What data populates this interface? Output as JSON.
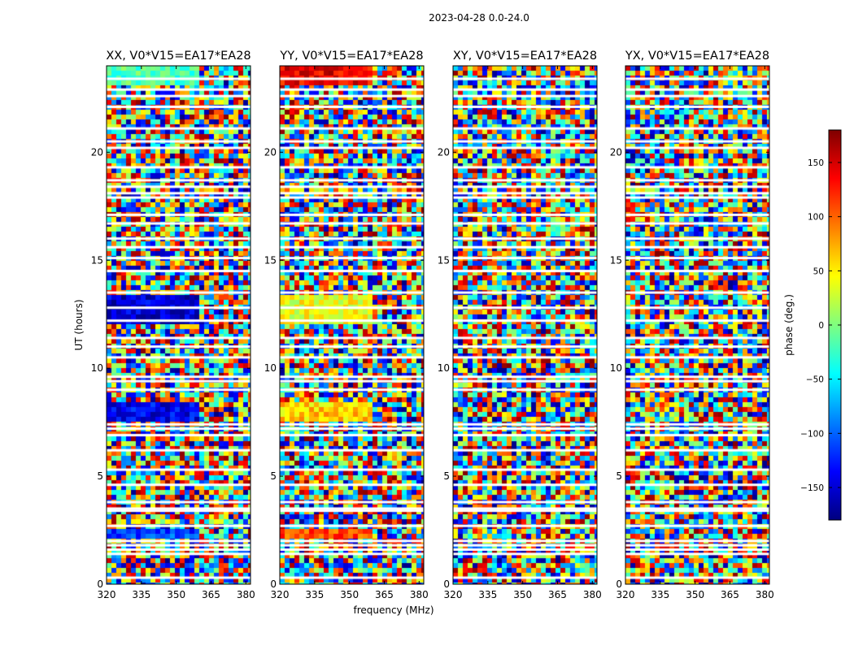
{
  "figure": {
    "suptitle": "2023-04-28 0.0-24.0",
    "xlabel": "frequency (MHz)",
    "ylabel": "UT (hours)"
  },
  "chart_data": {
    "type": "heatmap",
    "title": "2023-04-28 0.0-24.0",
    "x_axis": {
      "label": "frequency (MHz)",
      "range": [
        320,
        382
      ],
      "ticks": [
        320,
        335,
        350,
        365,
        380
      ]
    },
    "y_axis": {
      "label": "UT (hours)",
      "range": [
        0,
        24
      ],
      "ticks": [
        0,
        5,
        10,
        15,
        20
      ]
    },
    "colorbar": {
      "label": "phase (deg.)",
      "range": [
        -180,
        180
      ],
      "ticks": [
        -150,
        -100,
        -50,
        0,
        50,
        100,
        150
      ],
      "tick_labels": [
        "−150",
        "−100",
        "−50",
        "0",
        "50",
        "100",
        "150"
      ],
      "colormap": "jet",
      "colors": [
        "#00007f",
        "#0000ff",
        "#007fff",
        "#00ffff",
        "#7fff7f",
        "#ffff00",
        "#ff7f00",
        "#ff0000",
        "#7f0000"
      ]
    },
    "panels": [
      {
        "title": "XX, V0*V15=EA17*EA28",
        "coherent_bands": [
          {
            "t0": 23.0,
            "t1": 24.0,
            "phase": -20
          },
          {
            "t0": 12.0,
            "t1": 13.5,
            "phase": -150
          },
          {
            "t0": 7.5,
            "t1": 8.5,
            "phase": -140
          },
          {
            "t0": 2.1,
            "t1": 2.5,
            "phase": -110
          }
        ]
      },
      {
        "title": "YY, V0*V15=EA17*EA28",
        "coherent_bands": [
          {
            "t0": 23.0,
            "t1": 24.0,
            "phase": 140
          },
          {
            "t0": 12.0,
            "t1": 13.5,
            "phase": 40
          },
          {
            "t0": 7.5,
            "t1": 8.5,
            "phase": 60
          },
          {
            "t0": 2.1,
            "t1": 2.5,
            "phase": 110
          }
        ]
      },
      {
        "title": "XY, V0*V15=EA17*EA28",
        "coherent_bands": []
      },
      {
        "title": "YX, V0*V15=EA17*EA28",
        "coherent_bands": []
      }
    ],
    "flagged_gaps_hours": [
      0.3,
      1.4,
      1.6,
      1.8,
      2.0,
      2.7,
      3.4,
      3.5,
      3.8,
      4.6,
      5.3,
      6.2,
      6.9,
      7.2,
      7.4,
      9.0,
      9.4,
      9.6,
      10.5,
      11.0,
      11.4,
      12.2,
      12.8,
      13.5,
      14.5,
      15.1,
      15.6,
      16.0,
      16.7,
      17.1,
      17.9,
      18.1,
      18.4,
      18.7,
      19.3,
      20.2,
      20.5,
      21.1,
      22.1,
      22.6,
      22.9,
      23.4
    ]
  }
}
